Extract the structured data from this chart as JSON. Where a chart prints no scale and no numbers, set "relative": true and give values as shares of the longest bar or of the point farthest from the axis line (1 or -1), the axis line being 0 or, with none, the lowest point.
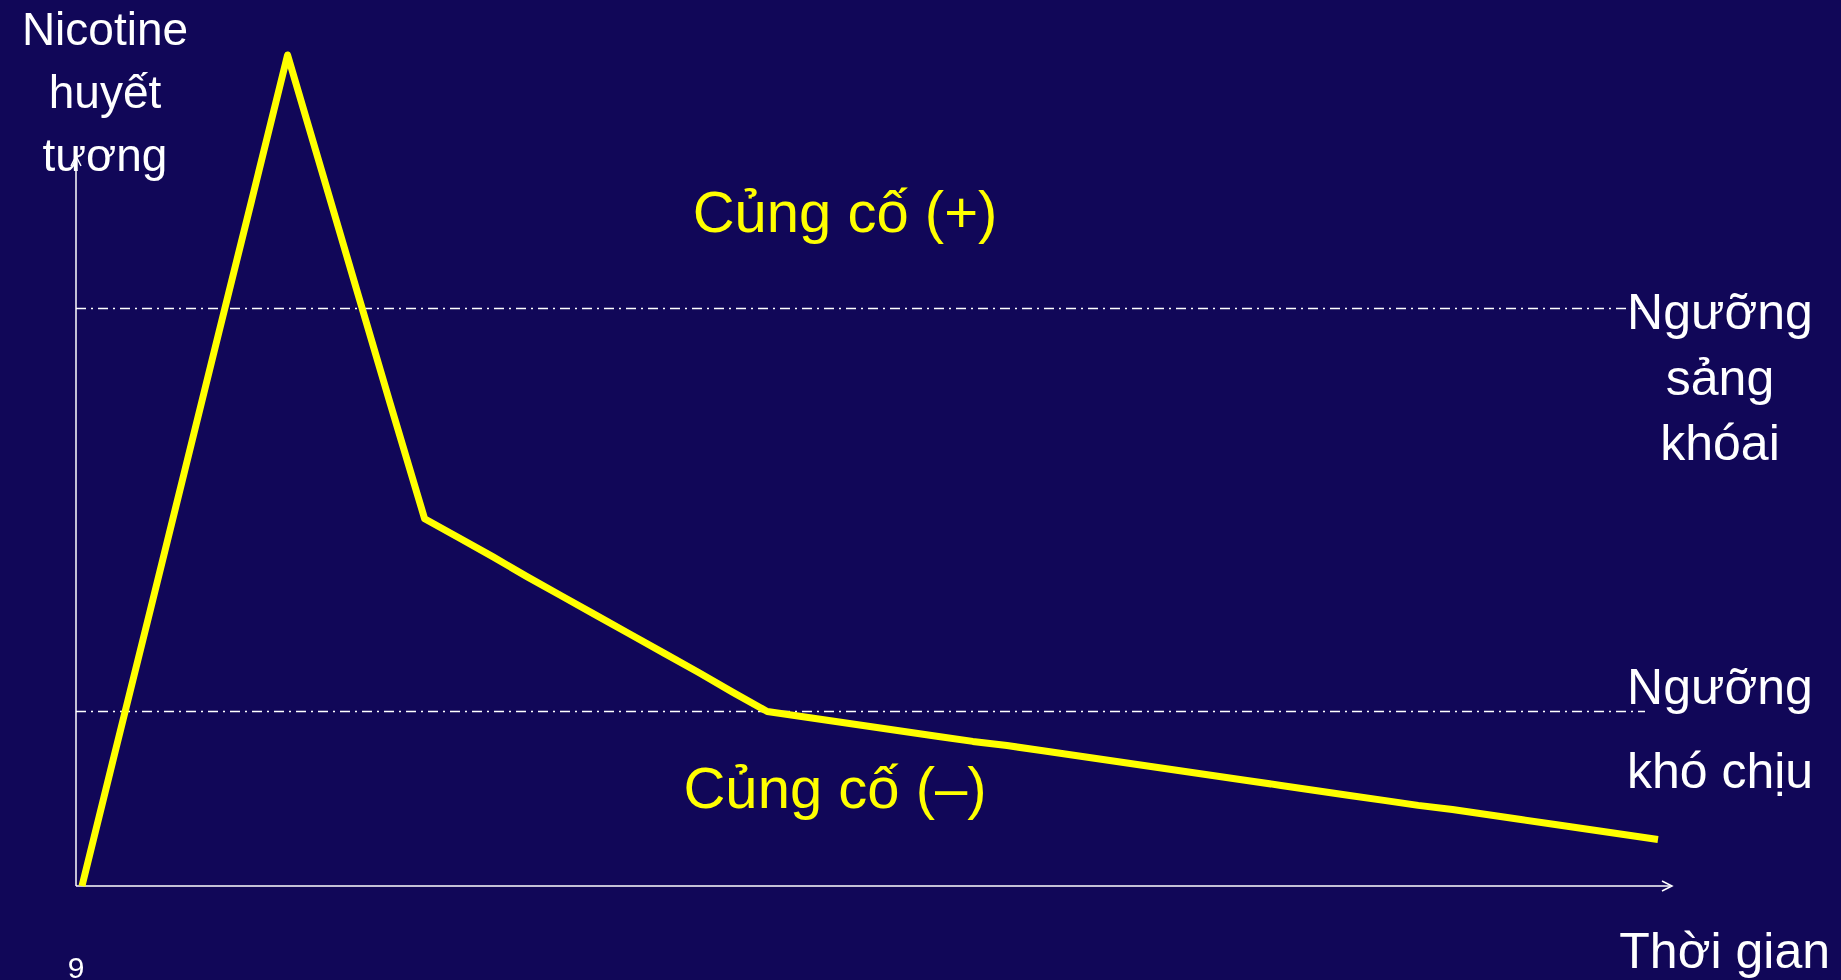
{
  "chart_data": {
    "type": "line",
    "relative": true,
    "ylabel": "Nicotine\nhuyết\ntương",
    "xlabel": "Thời gian",
    "categories": [
      null,
      null,
      null,
      null,
      null,
      null,
      null,
      null,
      null,
      null,
      null,
      null,
      null,
      null,
      null,
      null,
      null,
      null,
      null,
      null,
      null,
      null,
      null,
      null,
      null,
      null,
      null,
      null,
      null,
      null,
      null,
      null,
      null,
      null,
      null,
      null,
      null,
      null,
      null,
      null,
      null,
      null,
      null,
      null,
      null,
      null,
      null
    ],
    "series": [
      {
        "color": "#ffff00",
        "values": [
          0,
          0.167,
          0.333,
          0.5,
          0.667,
          0.833,
          1,
          0.86,
          0.72,
          0.58,
          0.442,
          0.419,
          0.396,
          0.372,
          0.349,
          0.326,
          0.303,
          0.28,
          0.257,
          0.233,
          0.21,
          0.204,
          0.198,
          0.192,
          0.186,
          0.18,
          0.174,
          0.169,
          0.163,
          0.157,
          0.151,
          0.145,
          0.139,
          0.133,
          0.127,
          0.121,
          0.115,
          0.109,
          0.103,
          0.097,
          0.092,
          0.086,
          0.08,
          0.074,
          0.068,
          0.062,
          0.056
        ]
      }
    ],
    "ref_lines": [
      {
        "axis": "y",
        "value": 0.695,
        "label": "Ngưỡng\nsảng\nkhóai",
        "color": "#ffffff",
        "line_style": "dashed"
      },
      {
        "axis": "y",
        "value": 0.21,
        "label": "Ngưỡng\nkhó chịu",
        "color": "#ffffff",
        "line_style": "dashed"
      }
    ],
    "annotations": [
      "Củng cố (+)",
      "Củng cố (–)",
      "9"
    ]
  }
}
